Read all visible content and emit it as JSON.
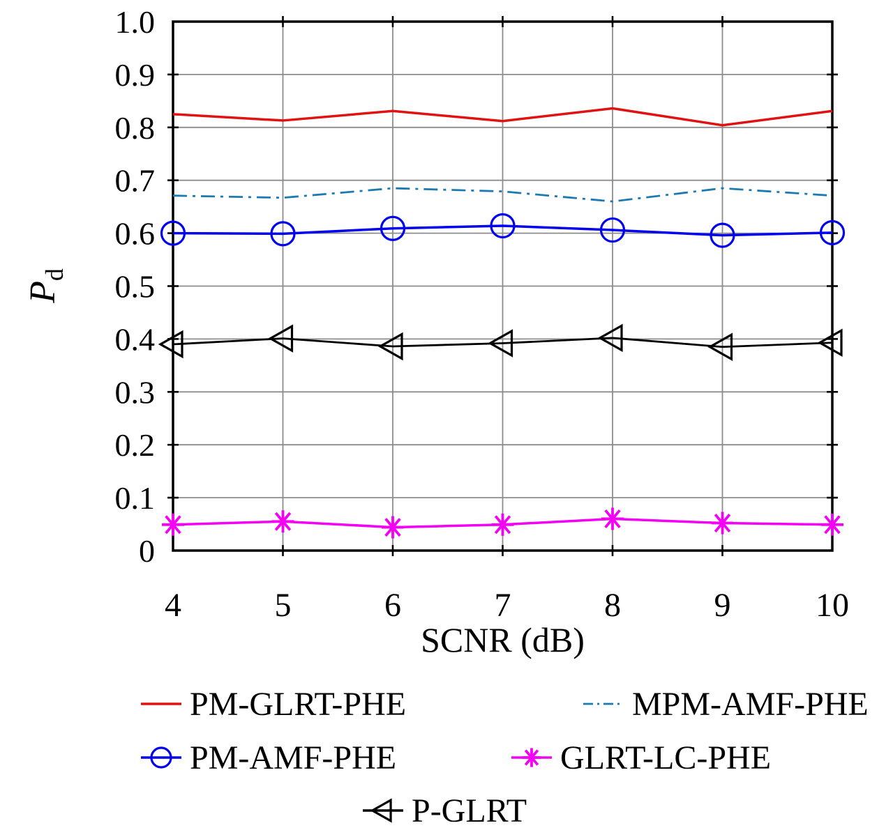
{
  "figure": {
    "background": "#ffffff",
    "border_color": "#000000",
    "grid_color": "#8c8c8c"
  },
  "chart_data": {
    "type": "line",
    "title": "",
    "xlabel": "SCNR (dB)",
    "ylabel": "P_d",
    "ylabel_main": "P",
    "ylabel_sub": "d",
    "x": [
      4,
      5,
      6,
      7,
      8,
      9,
      10
    ],
    "xlim": [
      4,
      10
    ],
    "ylim": [
      0,
      1
    ],
    "x_tick_labels": [
      "4",
      "5",
      "6",
      "7",
      "8",
      "9",
      "10"
    ],
    "y_ticks": [
      1.0,
      0.9,
      0.8,
      0.7,
      0.6,
      0.5,
      0.4,
      0.3,
      0.2,
      0.1,
      0
    ],
    "y_tick_labels": [
      "1.0",
      "0.9",
      "0.8",
      "0.7",
      "0.6",
      "0.5",
      "0.4",
      "0.3",
      "0.2",
      "0.1",
      "0"
    ],
    "grid": true,
    "legend_position": "below",
    "series": [
      {
        "name": "PM-GLRT-PHE",
        "color": "#e01212",
        "line": "solid",
        "marker": "none",
        "values": [
          0.825,
          0.813,
          0.831,
          0.812,
          0.836,
          0.804,
          0.831
        ]
      },
      {
        "name": "MPM-AMF-PHE",
        "color": "#1c7ab3",
        "line": "dashdot",
        "marker": "none",
        "values": [
          0.671,
          0.667,
          0.685,
          0.679,
          0.66,
          0.685,
          0.671
        ]
      },
      {
        "name": "PM-AMF-PHE",
        "color": "#0000ee",
        "line": "solid",
        "marker": "circle",
        "values": [
          0.6,
          0.599,
          0.609,
          0.614,
          0.606,
          0.596,
          0.601
        ]
      },
      {
        "name": "GLRT-LC-PHE",
        "color": "#f400f4",
        "line": "solid",
        "marker": "asterisk",
        "values": [
          0.049,
          0.055,
          0.044,
          0.049,
          0.06,
          0.052,
          0.049
        ]
      },
      {
        "name": "P-GLRT",
        "color": "#000000",
        "line": "solid",
        "marker": "triangle-left",
        "values": [
          0.39,
          0.401,
          0.386,
          0.392,
          0.402,
          0.385,
          0.393
        ]
      }
    ],
    "legend_rows": [
      [
        "PM-GLRT-PHE",
        "MPM-AMF-PHE"
      ],
      [
        "PM-AMF-PHE",
        "GLRT-LC-PHE"
      ],
      [
        "P-GLRT"
      ]
    ]
  }
}
